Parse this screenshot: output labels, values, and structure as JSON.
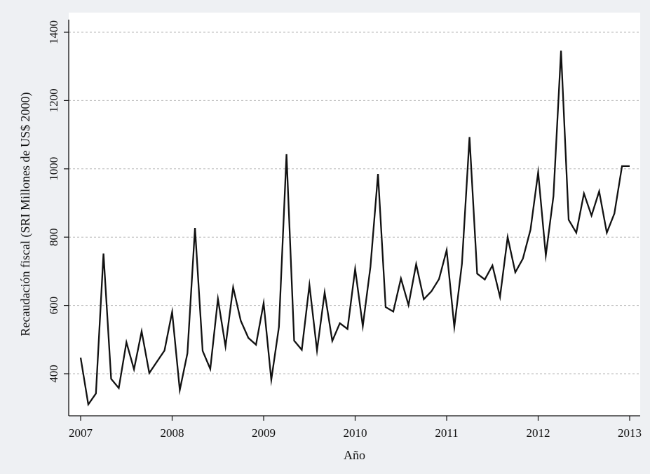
{
  "colors": {
    "page_background": "#eef0f3",
    "plot_background": "#ffffff",
    "line": "#111111",
    "grid": "#b5b5b5"
  },
  "chart_data": {
    "type": "line",
    "title": "",
    "xlabel": "Año",
    "ylabel": "Recaudación fiscal (SRI Millones de US$ 2000)",
    "xlim": [
      2007,
      2013
    ],
    "ylim": [
      290,
      1440
    ],
    "x_ticks": [
      "2007",
      "2008",
      "2009",
      "2010",
      "2011",
      "2012",
      "2013"
    ],
    "y_ticks": [
      "400",
      "600",
      "800",
      "1000",
      "1200",
      "1400"
    ],
    "grid": "horizontal dashed",
    "legend": "none",
    "series": [
      {
        "x": [
          "2007-01",
          "2007-02",
          "2007-03",
          "2007-04",
          "2007-05",
          "2007-06",
          "2007-07",
          "2007-08",
          "2007-09",
          "2007-10",
          "2007-11",
          "2007-12",
          "2008-01",
          "2008-02",
          "2008-03",
          "2008-04",
          "2008-05",
          "2008-06",
          "2008-07",
          "2008-08",
          "2008-09",
          "2008-10",
          "2008-11",
          "2008-12",
          "2009-01",
          "2009-02",
          "2009-03",
          "2009-04",
          "2009-05",
          "2009-06",
          "2009-07",
          "2009-08",
          "2009-09",
          "2009-10",
          "2009-11",
          "2009-12",
          "2010-01",
          "2010-02",
          "2010-03",
          "2010-04",
          "2010-05",
          "2010-06",
          "2010-07",
          "2010-08",
          "2010-09",
          "2010-10",
          "2010-11",
          "2010-12",
          "2011-01",
          "2011-02",
          "2011-03",
          "2011-04",
          "2011-05",
          "2011-06",
          "2011-07",
          "2011-08",
          "2011-09",
          "2011-10",
          "2011-11",
          "2011-12",
          "2012-01",
          "2012-02",
          "2012-03",
          "2012-04",
          "2012-05",
          "2012-06",
          "2012-07",
          "2012-08",
          "2012-09",
          "2012-10",
          "2012-11",
          "2012-12",
          "2013-01"
        ],
        "values": [
          447,
          310,
          342,
          752,
          385,
          358,
          492,
          413,
          524,
          402,
          435,
          468,
          581,
          352,
          460,
          827,
          467,
          414,
          619,
          480,
          653,
          555,
          505,
          485,
          607,
          382,
          537,
          1043,
          497,
          470,
          660,
          468,
          638,
          496,
          548,
          531,
          707,
          539,
          713,
          985,
          595,
          582,
          679,
          601,
          721,
          618,
          641,
          677,
          762,
          537,
          722,
          1093,
          693,
          676,
          717,
          625,
          800,
          697,
          737,
          822,
          990,
          746,
          920,
          1346,
          851,
          813,
          928,
          863,
          934,
          813,
          869,
          1008,
          1008
        ]
      }
    ]
  }
}
